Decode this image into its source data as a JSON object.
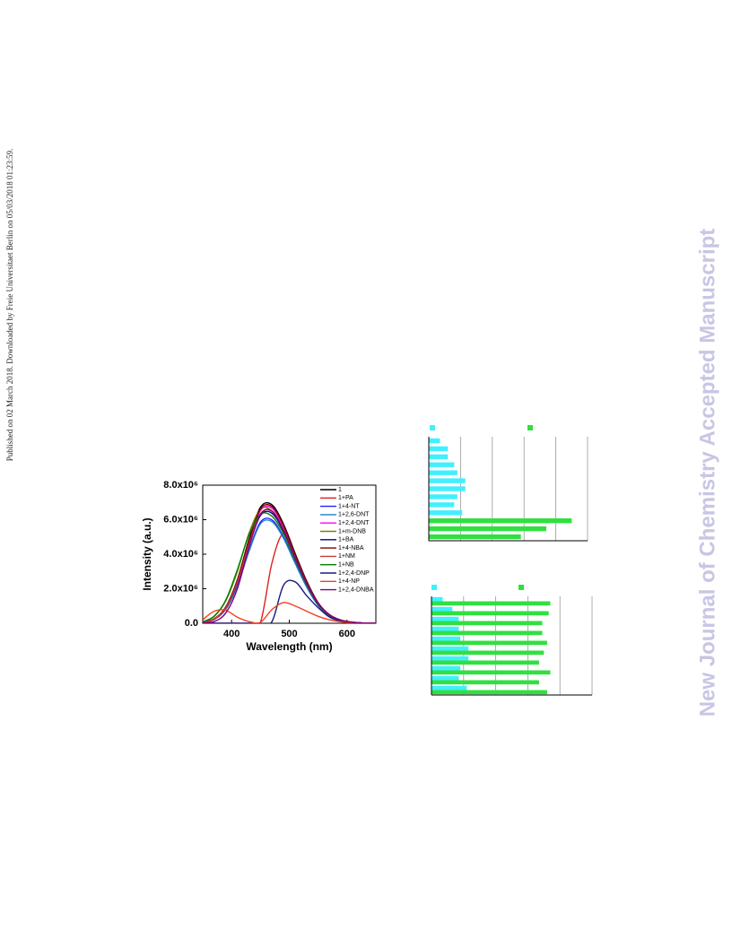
{
  "side_note": "Published on 02 March 2018. Downloaded by Freie Universitaet Berlin on 05/03/2018 01:23:59.",
  "watermark": "New Journal of Chemistry Accepted Manuscript",
  "chart_data": [
    {
      "type": "line",
      "x_label": "Wavelength (nm)",
      "y_label": "Intensity (a.u.)",
      "x": [
        350,
        370,
        390,
        410,
        430,
        450,
        470,
        490,
        510,
        530,
        550,
        570,
        590,
        610,
        630,
        650
      ],
      "xlim": [
        350,
        650
      ],
      "xticks": [
        400,
        500,
        600
      ],
      "ylim": [
        0,
        8000000.0
      ],
      "yticks": [
        {
          "value": 0,
          "label": "0.0"
        },
        {
          "value": 2000000.0,
          "label": "2.0x10⁶"
        },
        {
          "value": 4000000.0,
          "label": "4.0x10⁶"
        },
        {
          "value": 6000000.0,
          "label": "6.0x10⁶"
        },
        {
          "value": 8000000.0,
          "label": "8.0x10⁶"
        }
      ],
      "series": [
        {
          "name": "1",
          "color": "#000000",
          "values": [
            50000.0,
            260000.0,
            950000.0,
            2520000.0,
            4830000.0,
            6720000.0,
            6860000.0,
            5740000.0,
            4060000.0,
            2450000.0,
            1190000.0,
            490000.0,
            180000.0,
            60000.0,
            10000.0,
            0
          ]
        },
        {
          "name": "1+PA",
          "color": "#e02020",
          "values": [
            0,
            0,
            0,
            0,
            0,
            50000.0,
            3500000.0,
            5200000.0,
            3900000.0,
            2350000.0,
            1150000.0,
            470000.0,
            170000.0,
            50000.0,
            10000.0,
            0
          ]
        },
        {
          "name": "1+4-NT",
          "color": "#2020ff",
          "values": [
            40000.0,
            230000.0,
            820000.0,
            2200000.0,
            4210000.0,
            5860000.0,
            5980000.0,
            5000000.0,
            3540000.0,
            2140000.0,
            1040000.0,
            430000.0,
            150000.0,
            50000.0,
            10000.0,
            0
          ]
        },
        {
          "name": "1+2,6-DNT",
          "color": "#1e7fc0",
          "values": [
            40000.0,
            220000.0,
            810000.0,
            2160000.0,
            4140000.0,
            5760000.0,
            5880000.0,
            4920000.0,
            3480000.0,
            2100000.0,
            1020000.0,
            420000.0,
            150000.0,
            50000.0,
            10000.0,
            0
          ]
        },
        {
          "name": "1+2,4-DNT",
          "color": "#ff00ff",
          "values": [
            50000.0,
            250000.0,
            920000.0,
            2450000.0,
            4690000.0,
            6530000.0,
            6660000.0,
            5580000.0,
            3940000.0,
            2380000.0,
            1160000.0,
            480000.0,
            170000.0,
            50000.0,
            10000.0,
            0
          ]
        },
        {
          "name": "1+m-DNB",
          "color": "#808000",
          "values": [
            80000.0,
            400000.0,
            1300000.0,
            3000000.0,
            5200000.0,
            6600000.0,
            6500000.0,
            5400000.0,
            3800000.0,
            2300000.0,
            1100000.0,
            460000.0,
            170000.0,
            50000.0,
            10000.0,
            0
          ]
        },
        {
          "name": "1+BA",
          "color": "#000080",
          "values": [
            50000.0,
            240000.0,
            880000.0,
            2340000.0,
            4490000.0,
            6240000.0,
            6370000.0,
            5330000.0,
            3770000.0,
            2280000.0,
            1110000.0,
            460000.0,
            160000.0,
            50000.0,
            10000.0,
            0
          ]
        },
        {
          "name": "1+4-NBA",
          "color": "#800000",
          "values": [
            50000.0,
            260000.0,
            930000.0,
            2480000.0,
            4760000.0,
            6620000.0,
            6760000.0,
            5660000.0,
            4000000.0,
            2420000.0,
            1170000.0,
            480000.0,
            170000.0,
            60000.0,
            10000.0,
            0
          ]
        },
        {
          "name": "1+NM",
          "color": "#d03838",
          "values": [
            50000.0,
            240000.0,
            890000.0,
            2380000.0,
            4550000.0,
            6340000.0,
            6470000.0,
            5410000.0,
            3830000.0,
            2310000.0,
            1120000.0,
            460000.0,
            170000.0,
            50000.0,
            10000.0,
            0
          ]
        },
        {
          "name": "1+NB",
          "color": "#008000",
          "values": [
            80000.0,
            420000.0,
            1350000.0,
            3100000.0,
            5100000.0,
            6300000.0,
            6200000.0,
            5200000.0,
            3700000.0,
            2250000.0,
            1100000.0,
            450000.0,
            160000.0,
            50000.0,
            10000.0,
            0
          ]
        },
        {
          "name": "1+2,4-DNP",
          "color": "#1a1a80",
          "values": [
            0,
            0,
            0,
            0,
            0,
            0,
            100000.0,
            2200000.0,
            2400000.0,
            1600000.0,
            900000.0,
            350000.0,
            120000.0,
            40000.0,
            10000.0,
            0
          ]
        },
        {
          "name": "1+4-NP",
          "color": "#f04020",
          "values": [
            200000.0,
            700000.0,
            750000.0,
            350000.0,
            100000.0,
            50000.0,
            800000.0,
            1200000.0,
            1000000.0,
            700000.0,
            400000.0,
            200000.0,
            80000.0,
            30000.0,
            10000.0,
            0
          ]
        },
        {
          "name": "1+2,4-DNBA",
          "color": "#800080",
          "values": [
            20000.0,
            100000.0,
            600000.0,
            2000000.0,
            4400000.0,
            6300000.0,
            6500000.0,
            5400000.0,
            3800000.0,
            2300000.0,
            1120000.0,
            460000.0,
            170000.0,
            50000.0,
            10000.0,
            0
          ]
        }
      ]
    },
    {
      "type": "hbar",
      "categories": [
        null,
        null,
        null,
        null,
        null,
        null,
        null,
        null,
        null,
        null,
        null,
        null,
        null
      ],
      "xlim": [
        0,
        5
      ],
      "xticks": [
        1,
        2,
        3,
        4,
        5
      ],
      "grid": true,
      "series": [
        {
          "color": "#40f0ff",
          "values": [
            0.35,
            0.6,
            0.6,
            0.8,
            0.9,
            1.15,
            1.15,
            0.9,
            0.8,
            1.05,
            null,
            null,
            null
          ]
        },
        {
          "color": "#30e040",
          "values": [
            null,
            null,
            null,
            null,
            null,
            null,
            null,
            null,
            null,
            null,
            4.5,
            3.7,
            2.9
          ]
        }
      ]
    },
    {
      "type": "hbar",
      "categories": [
        null,
        null,
        null,
        null,
        null,
        null,
        null,
        null,
        null,
        null
      ],
      "xlim": [
        0,
        5
      ],
      "xticks": [
        1,
        2,
        3,
        4,
        5
      ],
      "grid": true,
      "series": [
        {
          "color": "#40f0ff",
          "values": [
            0.35,
            0.65,
            0.85,
            0.85,
            0.9,
            1.15,
            1.15,
            0.9,
            0.85,
            1.1
          ]
        },
        {
          "color": "#30e040",
          "values": [
            3.7,
            3.65,
            3.45,
            3.45,
            3.6,
            3.5,
            3.35,
            3.7,
            3.35,
            3.6
          ]
        }
      ]
    }
  ]
}
